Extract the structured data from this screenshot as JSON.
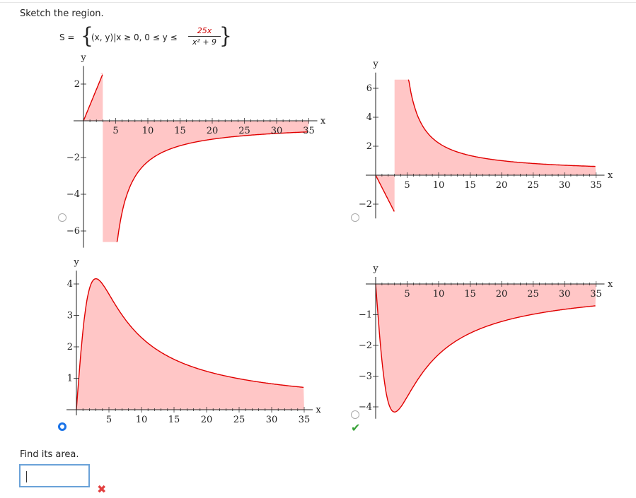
{
  "prompt": "Sketch the region.",
  "setdef": {
    "lhs": "S =",
    "open_brace": "{",
    "condition": "(x, y)|x ≥ 0, 0 ≤ y ≤",
    "numerator": "25x",
    "denominator": "x² + 9",
    "close_brace": "}"
  },
  "options": [
    {
      "id": "A",
      "selected": false,
      "mark": ""
    },
    {
      "id": "B",
      "selected": false,
      "mark": ""
    },
    {
      "id": "C",
      "selected": true,
      "mark": ""
    },
    {
      "id": "D",
      "selected": false,
      "mark": "correct"
    }
  ],
  "find_area": "Find its area.",
  "answer_value": "",
  "answer_status": "incorrect",
  "icons": {
    "correct": "check-icon",
    "incorrect": "x-mark-icon"
  },
  "colors": {
    "fill": "#ffc6c6",
    "curve": "#e00000",
    "radio_selected": "#1a73e8",
    "check": "#3aa33a",
    "xmark": "#e34040"
  },
  "marks": {
    "check": "✔",
    "xmark": "✖"
  },
  "chart_data": [
    {
      "type": "area",
      "option": "A",
      "xlabel": "x",
      "ylabel": "y",
      "x_ticks": [
        5,
        10,
        15,
        20,
        25,
        30,
        35
      ],
      "y_ticks": [
        2,
        -2,
        -4,
        -6
      ],
      "xlim": [
        0,
        36
      ],
      "ylim": [
        -6.6,
        2.6
      ],
      "description_curve": "y = -25/(x-3) style mirrored region"
    },
    {
      "type": "area",
      "option": "B",
      "xlabel": "x",
      "ylabel": "y",
      "x_ticks": [
        5,
        10,
        15,
        20,
        25,
        30,
        35
      ],
      "y_ticks": [
        6,
        4,
        2,
        -2
      ],
      "xlim": [
        0,
        36
      ],
      "ylim": [
        -2.6,
        6.6
      ]
    },
    {
      "type": "area",
      "option": "C",
      "xlabel": "x",
      "ylabel": "y",
      "x_ticks": [
        5,
        10,
        15,
        20,
        25,
        30,
        35
      ],
      "y_ticks": [
        4,
        3,
        2,
        1
      ],
      "xlim": [
        0,
        35
      ],
      "ylim": [
        0,
        4.2
      ],
      "function": "25x/(x^2+9)"
    },
    {
      "type": "area",
      "option": "D",
      "xlabel": "x",
      "ylabel": "y",
      "x_ticks": [
        5,
        10,
        15,
        20,
        25,
        30,
        35
      ],
      "y_ticks": [
        -1,
        -2,
        -3,
        -4
      ],
      "xlim": [
        0,
        35
      ],
      "ylim": [
        -4.2,
        0
      ],
      "function": "-25x/(x^2+9)"
    }
  ]
}
